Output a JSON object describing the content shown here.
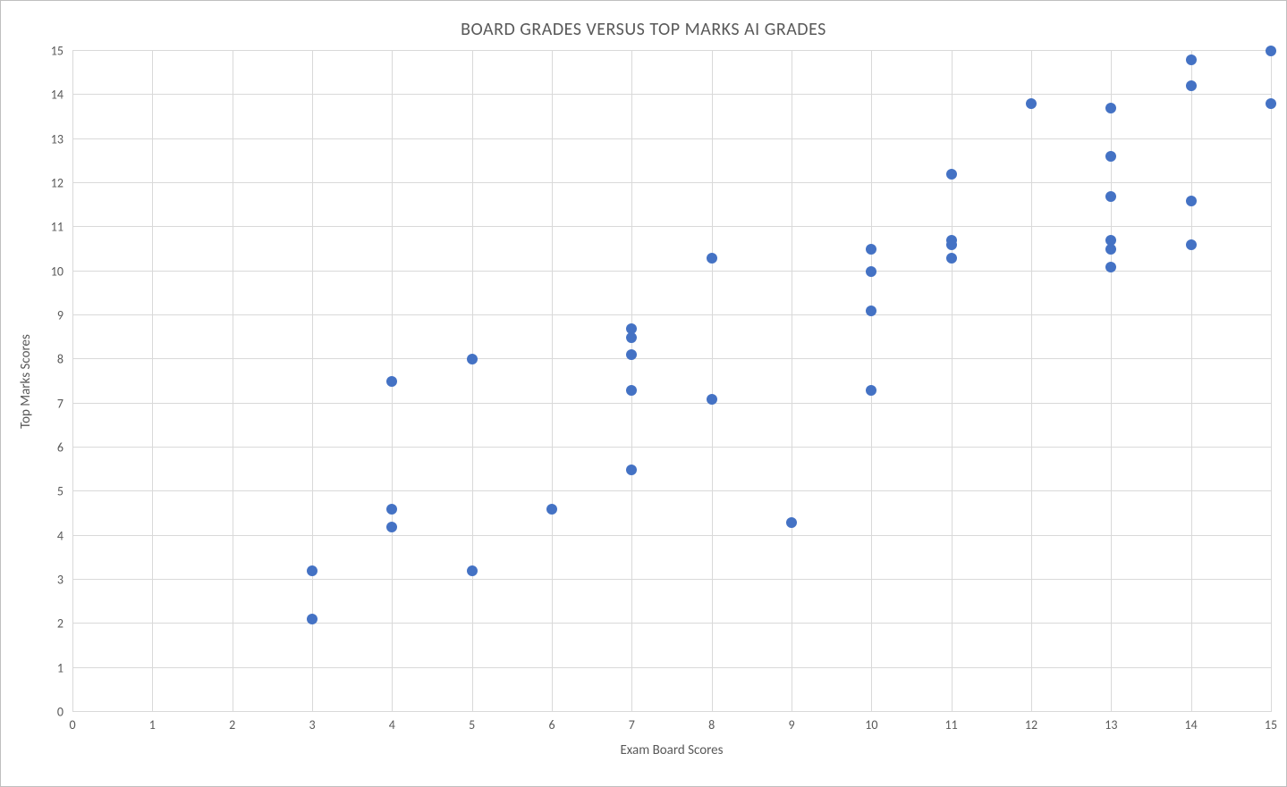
{
  "chart": {
    "type": "scatter",
    "title": "BOARD GRADES VERSUS TOP MARKS AI GRADES",
    "title_fontsize": 20,
    "title_color": "#595959",
    "xlabel": "Exam Board Scores",
    "ylabel": "Top Marks Scores",
    "label_fontsize": 15,
    "label_color": "#595959",
    "tick_fontsize": 14,
    "tick_color": "#595959",
    "background_color": "#ffffff",
    "border_color": "#bfbfbf",
    "grid_color": "#d9d9d9",
    "point_color": "#4472c4",
    "point_radius": 6,
    "xlim": [
      0,
      15
    ],
    "ylim": [
      0,
      15
    ],
    "xtick_step": 1,
    "ytick_step": 1,
    "xticks": [
      0,
      1,
      2,
      3,
      4,
      5,
      6,
      7,
      8,
      9,
      10,
      11,
      12,
      13,
      14,
      15
    ],
    "yticks": [
      0,
      1,
      2,
      3,
      4,
      5,
      6,
      7,
      8,
      9,
      10,
      11,
      12,
      13,
      14,
      15
    ],
    "points": [
      {
        "x": 3,
        "y": 2.1
      },
      {
        "x": 3,
        "y": 3.2
      },
      {
        "x": 4,
        "y": 4.2
      },
      {
        "x": 4,
        "y": 4.6
      },
      {
        "x": 4,
        "y": 7.5
      },
      {
        "x": 5,
        "y": 3.2
      },
      {
        "x": 5,
        "y": 8.0
      },
      {
        "x": 6,
        "y": 4.6
      },
      {
        "x": 7,
        "y": 5.5
      },
      {
        "x": 7,
        "y": 7.3
      },
      {
        "x": 7,
        "y": 8.1
      },
      {
        "x": 7,
        "y": 8.5
      },
      {
        "x": 7,
        "y": 8.7
      },
      {
        "x": 8,
        "y": 7.1
      },
      {
        "x": 8,
        "y": 10.3
      },
      {
        "x": 9,
        "y": 4.3
      },
      {
        "x": 10,
        "y": 7.3
      },
      {
        "x": 10,
        "y": 9.1
      },
      {
        "x": 10,
        "y": 10.0
      },
      {
        "x": 10,
        "y": 10.5
      },
      {
        "x": 11,
        "y": 10.3
      },
      {
        "x": 11,
        "y": 10.6
      },
      {
        "x": 11,
        "y": 10.7
      },
      {
        "x": 11,
        "y": 12.2
      },
      {
        "x": 12,
        "y": 13.8
      },
      {
        "x": 13,
        "y": 10.1
      },
      {
        "x": 13,
        "y": 10.5
      },
      {
        "x": 13,
        "y": 10.7
      },
      {
        "x": 13,
        "y": 11.7
      },
      {
        "x": 13,
        "y": 12.6
      },
      {
        "x": 13,
        "y": 13.7
      },
      {
        "x": 14,
        "y": 10.6
      },
      {
        "x": 14,
        "y": 11.6
      },
      {
        "x": 14,
        "y": 14.2
      },
      {
        "x": 14,
        "y": 14.8
      },
      {
        "x": 15,
        "y": 13.8
      },
      {
        "x": 15,
        "y": 15.0
      }
    ]
  }
}
